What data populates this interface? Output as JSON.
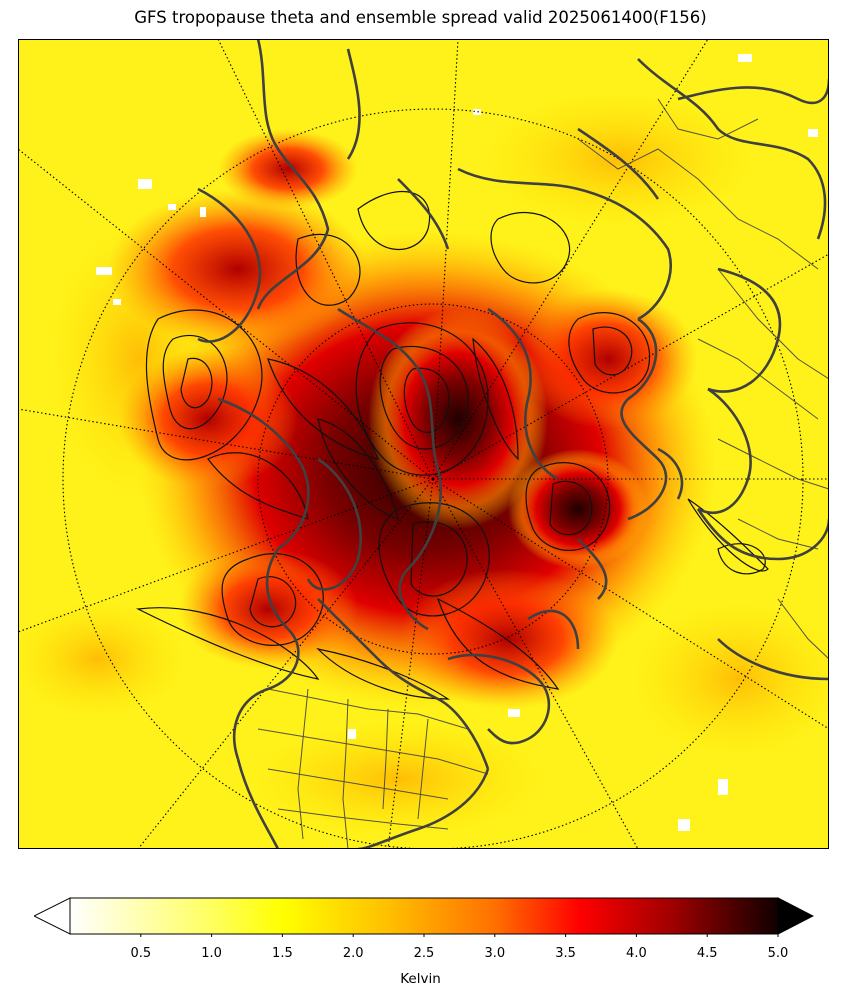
{
  "title": "GFS tropopause theta and ensemble spread valid 2025061400(F156)",
  "colorbar": {
    "label": "Kelvin",
    "ticks": [
      "0.5",
      "1.0",
      "1.5",
      "2.0",
      "2.5",
      "3.0",
      "3.5",
      "4.0",
      "4.5",
      "5.0"
    ],
    "min": 0.0,
    "max": 5.0,
    "extend": "both",
    "colormap": "hot_r",
    "colors": {
      "low": "#ffffff",
      "yellow": "#ffff00",
      "orange": "#ff8000",
      "red": "#ff0000",
      "dark": "#5a0000",
      "high": "#000000"
    }
  },
  "map": {
    "projection": "north polar stereographic",
    "field": "ensemble spread of tropopause theta (shaded)",
    "contours": "tropopause theta (black lines)",
    "coastline_color": "#404040",
    "graticule": "dotted"
  }
}
